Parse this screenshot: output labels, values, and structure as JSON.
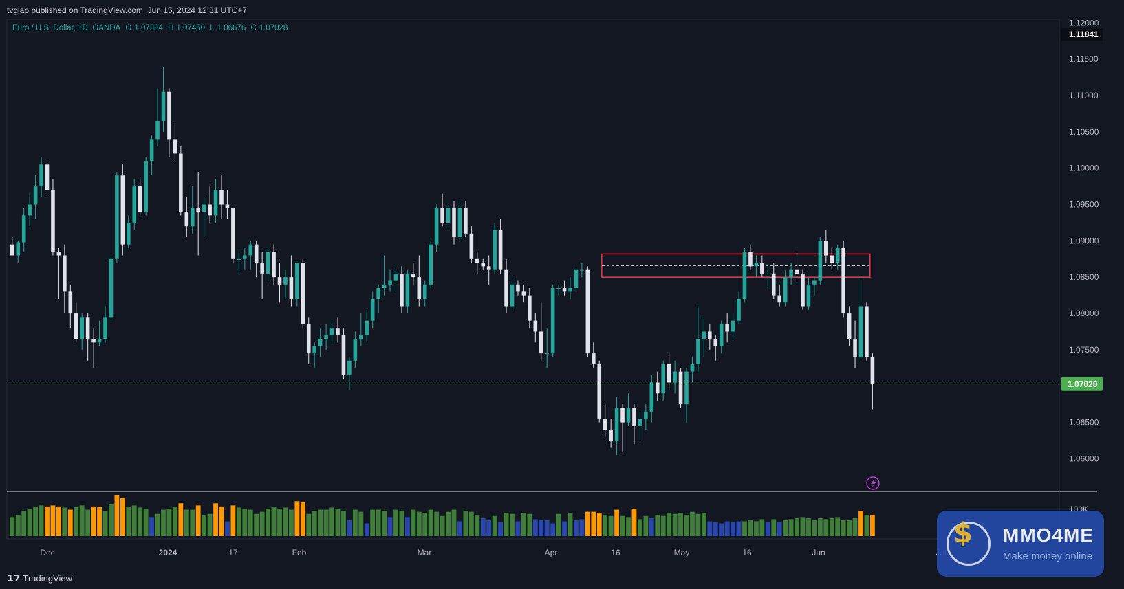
{
  "header": {
    "published": "tvgiap published on TradingView.com, Jun 15, 2024 12:31 UTC+7"
  },
  "legend": {
    "symbol": "Euro / U.S. Dollar, 1D, OANDA",
    "open_label": "O",
    "open": "1.07384",
    "high_label": "H",
    "high": "1.07450",
    "low_label": "L",
    "low": "1.06676",
    "close_label": "C",
    "close": "1.07028"
  },
  "price_axis": {
    "ticks": [
      "1.12000",
      "1.11500",
      "1.11000",
      "1.10500",
      "1.10000",
      "1.09500",
      "1.09000",
      "1.08500",
      "1.08000",
      "1.07500",
      "1.06500",
      "1.06000"
    ],
    "top_badge": "1.11841",
    "last_badge": "1.07028"
  },
  "volume_axis": {
    "label": "100K"
  },
  "time_axis": {
    "labels": [
      "Dec",
      "2024",
      "17",
      "Feb",
      "Mar",
      "Apr",
      "16",
      "May",
      "16",
      "Jun",
      "Jul"
    ]
  },
  "colors": {
    "up": "#26a69a",
    "down": "#e0e3eb",
    "bg": "#131722",
    "grid": "#2a2e39",
    "box": "#f23645",
    "vol_green": "#3f7f3a",
    "vol_orange": "#ff9800",
    "vol_blue": "#2848b0",
    "last_price": "#4caf50"
  },
  "icons": {
    "lightning": "lightning-icon"
  },
  "footer": {
    "logo_text": "TradingView"
  },
  "watermark": {
    "name": "MMO4ME",
    "tagline": "Make money online"
  },
  "chart_data": {
    "type": "candlestick",
    "symbol": "EURUSD",
    "timeframe": "1D",
    "ylim": [
      1.0555,
      1.1205
    ],
    "last_price": 1.07028,
    "candles": [
      {
        "o": 1.0895,
        "h": 1.0905,
        "l": 1.088,
        "c": 1.088
      },
      {
        "o": 1.088,
        "h": 1.09,
        "l": 1.087,
        "c": 1.0898
      },
      {
        "o": 1.0898,
        "h": 1.0945,
        "l": 1.0885,
        "c": 1.0935
      },
      {
        "o": 1.0935,
        "h": 1.0965,
        "l": 1.092,
        "c": 1.095
      },
      {
        "o": 1.095,
        "h": 1.099,
        "l": 1.093,
        "c": 1.0975
      },
      {
        "o": 1.0975,
        "h": 1.1015,
        "l": 1.096,
        "c": 1.1005
      },
      {
        "o": 1.1005,
        "h": 1.101,
        "l": 1.096,
        "c": 1.097
      },
      {
        "o": 1.097,
        "h": 1.0985,
        "l": 1.088,
        "c": 1.0885
      },
      {
        "o": 1.0885,
        "h": 1.089,
        "l": 1.082,
        "c": 1.088
      },
      {
        "o": 1.088,
        "h": 1.0895,
        "l": 1.08,
        "c": 1.083
      },
      {
        "o": 1.083,
        "h": 1.084,
        "l": 1.078,
        "c": 1.08
      },
      {
        "o": 1.08,
        "h": 1.0815,
        "l": 1.076,
        "c": 1.0765
      },
      {
        "o": 1.0765,
        "h": 1.08,
        "l": 1.075,
        "c": 1.0795
      },
      {
        "o": 1.0795,
        "h": 1.08,
        "l": 1.0735,
        "c": 1.0765
      },
      {
        "o": 1.0765,
        "h": 1.078,
        "l": 1.0725,
        "c": 1.076
      },
      {
        "o": 1.076,
        "h": 1.079,
        "l": 1.0755,
        "c": 1.0765
      },
      {
        "o": 1.0765,
        "h": 1.081,
        "l": 1.076,
        "c": 1.0795
      },
      {
        "o": 1.0795,
        "h": 1.088,
        "l": 1.079,
        "c": 1.0875
      },
      {
        "o": 1.0875,
        "h": 1.0995,
        "l": 1.087,
        "c": 1.099
      },
      {
        "o": 1.099,
        "h": 1.1005,
        "l": 1.088,
        "c": 1.0895
      },
      {
        "o": 1.0895,
        "h": 1.0935,
        "l": 1.089,
        "c": 1.0925
      },
      {
        "o": 1.0925,
        "h": 1.0985,
        "l": 1.0915,
        "c": 1.0975
      },
      {
        "o": 1.0975,
        "h": 1.0985,
        "l": 1.0935,
        "c": 1.094
      },
      {
        "o": 1.094,
        "h": 1.1015,
        "l": 1.0935,
        "c": 1.101
      },
      {
        "o": 1.101,
        "h": 1.1045,
        "l": 1.099,
        "c": 1.104
      },
      {
        "o": 1.104,
        "h": 1.111,
        "l": 1.103,
        "c": 1.1065
      },
      {
        "o": 1.1065,
        "h": 1.114,
        "l": 1.105,
        "c": 1.1105
      },
      {
        "o": 1.1105,
        "h": 1.111,
        "l": 1.1015,
        "c": 1.104
      },
      {
        "o": 1.104,
        "h": 1.106,
        "l": 1.101,
        "c": 1.102
      },
      {
        "o": 1.102,
        "h": 1.103,
        "l": 1.0935,
        "c": 1.094
      },
      {
        "o": 1.094,
        "h": 1.096,
        "l": 1.0905,
        "c": 1.092
      },
      {
        "o": 1.092,
        "h": 1.0975,
        "l": 1.091,
        "c": 1.0945
      },
      {
        "o": 1.0945,
        "h": 1.0995,
        "l": 1.088,
        "c": 1.094
      },
      {
        "o": 1.094,
        "h": 1.096,
        "l": 1.0905,
        "c": 1.095
      },
      {
        "o": 1.095,
        "h": 1.0975,
        "l": 1.0925,
        "c": 1.0935
      },
      {
        "o": 1.0935,
        "h": 1.0985,
        "l": 1.0925,
        "c": 1.097
      },
      {
        "o": 1.097,
        "h": 1.099,
        "l": 1.093,
        "c": 1.095
      },
      {
        "o": 1.095,
        "h": 1.097,
        "l": 1.093,
        "c": 1.0945
      },
      {
        "o": 1.0945,
        "h": 1.0945,
        "l": 1.087,
        "c": 1.0875
      },
      {
        "o": 1.0875,
        "h": 1.0885,
        "l": 1.0855,
        "c": 1.0875
      },
      {
        "o": 1.0875,
        "h": 1.089,
        "l": 1.086,
        "c": 1.088
      },
      {
        "o": 1.088,
        "h": 1.09,
        "l": 1.086,
        "c": 1.0895
      },
      {
        "o": 1.0895,
        "h": 1.09,
        "l": 1.085,
        "c": 1.087
      },
      {
        "o": 1.087,
        "h": 1.0885,
        "l": 1.082,
        "c": 1.0855
      },
      {
        "o": 1.0855,
        "h": 1.089,
        "l": 1.0845,
        "c": 1.0885
      },
      {
        "o": 1.0885,
        "h": 1.0895,
        "l": 1.084,
        "c": 1.085
      },
      {
        "o": 1.085,
        "h": 1.087,
        "l": 1.0815,
        "c": 1.084
      },
      {
        "o": 1.084,
        "h": 1.086,
        "l": 1.082,
        "c": 1.085
      },
      {
        "o": 1.085,
        "h": 1.088,
        "l": 1.081,
        "c": 1.082
      },
      {
        "o": 1.082,
        "h": 1.087,
        "l": 1.081,
        "c": 1.087
      },
      {
        "o": 1.087,
        "h": 1.0875,
        "l": 1.078,
        "c": 1.0785
      },
      {
        "o": 1.0785,
        "h": 1.0795,
        "l": 1.073,
        "c": 1.0745
      },
      {
        "o": 1.0745,
        "h": 1.076,
        "l": 1.0725,
        "c": 1.0755
      },
      {
        "o": 1.0755,
        "h": 1.078,
        "l": 1.074,
        "c": 1.0765
      },
      {
        "o": 1.0765,
        "h": 1.0785,
        "l": 1.075,
        "c": 1.077
      },
      {
        "o": 1.077,
        "h": 1.079,
        "l": 1.076,
        "c": 1.078
      },
      {
        "o": 1.078,
        "h": 1.0795,
        "l": 1.076,
        "c": 1.077
      },
      {
        "o": 1.077,
        "h": 1.078,
        "l": 1.071,
        "c": 1.0715
      },
      {
        "o": 1.0715,
        "h": 1.074,
        "l": 1.0695,
        "c": 1.0735
      },
      {
        "o": 1.0735,
        "h": 1.0775,
        "l": 1.0725,
        "c": 1.0765
      },
      {
        "o": 1.0765,
        "h": 1.08,
        "l": 1.0755,
        "c": 1.077
      },
      {
        "o": 1.077,
        "h": 1.0805,
        "l": 1.076,
        "c": 1.079
      },
      {
        "o": 1.079,
        "h": 1.083,
        "l": 1.078,
        "c": 1.082
      },
      {
        "o": 1.082,
        "h": 1.084,
        "l": 1.08,
        "c": 1.0835
      },
      {
        "o": 1.0835,
        "h": 1.088,
        "l": 1.0825,
        "c": 1.084
      },
      {
        "o": 1.084,
        "h": 1.086,
        "l": 1.083,
        "c": 1.0845
      },
      {
        "o": 1.0845,
        "h": 1.0865,
        "l": 1.083,
        "c": 1.0855
      },
      {
        "o": 1.0855,
        "h": 1.0865,
        "l": 1.08,
        "c": 1.081
      },
      {
        "o": 1.081,
        "h": 1.086,
        "l": 1.08,
        "c": 1.0855
      },
      {
        "o": 1.0855,
        "h": 1.087,
        "l": 1.084,
        "c": 1.085
      },
      {
        "o": 1.085,
        "h": 1.088,
        "l": 1.081,
        "c": 1.082
      },
      {
        "o": 1.082,
        "h": 1.0845,
        "l": 1.081,
        "c": 1.084
      },
      {
        "o": 1.084,
        "h": 1.09,
        "l": 1.0835,
        "c": 1.0895
      },
      {
        "o": 1.0895,
        "h": 1.095,
        "l": 1.0885,
        "c": 1.0945
      },
      {
        "o": 1.0945,
        "h": 1.0965,
        "l": 1.092,
        "c": 1.0925
      },
      {
        "o": 1.0925,
        "h": 1.095,
        "l": 1.0915,
        "c": 1.0945
      },
      {
        "o": 1.0945,
        "h": 1.0955,
        "l": 1.0895,
        "c": 1.0905
      },
      {
        "o": 1.0905,
        "h": 1.0955,
        "l": 1.09,
        "c": 1.0945
      },
      {
        "o": 1.0945,
        "h": 1.0955,
        "l": 1.0905,
        "c": 1.091
      },
      {
        "o": 1.091,
        "h": 1.092,
        "l": 1.087,
        "c": 1.0875
      },
      {
        "o": 1.0875,
        "h": 1.0885,
        "l": 1.0855,
        "c": 1.087
      },
      {
        "o": 1.087,
        "h": 1.0875,
        "l": 1.086,
        "c": 1.0865
      },
      {
        "o": 1.0865,
        "h": 1.088,
        "l": 1.084,
        "c": 1.086
      },
      {
        "o": 1.086,
        "h": 1.0925,
        "l": 1.0855,
        "c": 1.0915
      },
      {
        "o": 1.0915,
        "h": 1.093,
        "l": 1.0855,
        "c": 1.086
      },
      {
        "o": 1.086,
        "h": 1.0875,
        "l": 1.08,
        "c": 1.081
      },
      {
        "o": 1.081,
        "h": 1.085,
        "l": 1.0805,
        "c": 1.084
      },
      {
        "o": 1.084,
        "h": 1.0845,
        "l": 1.0825,
        "c": 1.083
      },
      {
        "o": 1.083,
        "h": 1.084,
        "l": 1.0815,
        "c": 1.0825
      },
      {
        "o": 1.0825,
        "h": 1.0835,
        "l": 1.078,
        "c": 1.079
      },
      {
        "o": 1.079,
        "h": 1.08,
        "l": 1.076,
        "c": 1.0775
      },
      {
        "o": 1.0775,
        "h": 1.0815,
        "l": 1.0735,
        "c": 1.0745
      },
      {
        "o": 1.0745,
        "h": 1.078,
        "l": 1.0725,
        "c": 1.0745
      },
      {
        "o": 1.0745,
        "h": 1.084,
        "l": 1.074,
        "c": 1.0835
      },
      {
        "o": 1.0835,
        "h": 1.084,
        "l": 1.0825,
        "c": 1.0835
      },
      {
        "o": 1.0835,
        "h": 1.0845,
        "l": 1.0825,
        "c": 1.083
      },
      {
        "o": 1.083,
        "h": 1.085,
        "l": 1.082,
        "c": 1.0835
      },
      {
        "o": 1.0835,
        "h": 1.0865,
        "l": 1.083,
        "c": 1.086
      },
      {
        "o": 1.086,
        "h": 1.087,
        "l": 1.085,
        "c": 1.086
      },
      {
        "o": 1.086,
        "h": 1.0865,
        "l": 1.074,
        "c": 1.0745
      },
      {
        "o": 1.0745,
        "h": 1.076,
        "l": 1.0725,
        "c": 1.073
      },
      {
        "o": 1.073,
        "h": 1.0735,
        "l": 1.065,
        "c": 1.0655
      },
      {
        "o": 1.0655,
        "h": 1.0675,
        "l": 1.063,
        "c": 1.064
      },
      {
        "o": 1.064,
        "h": 1.0655,
        "l": 1.0615,
        "c": 1.0625
      },
      {
        "o": 1.0625,
        "h": 1.0685,
        "l": 1.0605,
        "c": 1.067
      },
      {
        "o": 1.067,
        "h": 1.0675,
        "l": 1.061,
        "c": 1.065
      },
      {
        "o": 1.065,
        "h": 1.069,
        "l": 1.0645,
        "c": 1.067
      },
      {
        "o": 1.067,
        "h": 1.0675,
        "l": 1.062,
        "c": 1.0645
      },
      {
        "o": 1.0645,
        "h": 1.0665,
        "l": 1.0625,
        "c": 1.0655
      },
      {
        "o": 1.0655,
        "h": 1.0675,
        "l": 1.064,
        "c": 1.0665
      },
      {
        "o": 1.0665,
        "h": 1.0715,
        "l": 1.065,
        "c": 1.0705
      },
      {
        "o": 1.0705,
        "h": 1.072,
        "l": 1.068,
        "c": 1.069
      },
      {
        "o": 1.069,
        "h": 1.0735,
        "l": 1.068,
        "c": 1.073
      },
      {
        "o": 1.073,
        "h": 1.0745,
        "l": 1.0695,
        "c": 1.0705
      },
      {
        "o": 1.0705,
        "h": 1.0735,
        "l": 1.069,
        "c": 1.072
      },
      {
        "o": 1.072,
        "h": 1.0725,
        "l": 1.067,
        "c": 1.0675
      },
      {
        "o": 1.0675,
        "h": 1.0725,
        "l": 1.065,
        "c": 1.072
      },
      {
        "o": 1.072,
        "h": 1.074,
        "l": 1.0705,
        "c": 1.073
      },
      {
        "o": 1.073,
        "h": 1.081,
        "l": 1.072,
        "c": 1.0765
      },
      {
        "o": 1.0765,
        "h": 1.0795,
        "l": 1.074,
        "c": 1.0775
      },
      {
        "o": 1.0775,
        "h": 1.0785,
        "l": 1.075,
        "c": 1.0765
      },
      {
        "o": 1.0765,
        "h": 1.077,
        "l": 1.0735,
        "c": 1.0755
      },
      {
        "o": 1.0755,
        "h": 1.079,
        "l": 1.0745,
        "c": 1.0785
      },
      {
        "o": 1.0785,
        "h": 1.08,
        "l": 1.076,
        "c": 1.0775
      },
      {
        "o": 1.0775,
        "h": 1.08,
        "l": 1.0765,
        "c": 1.079
      },
      {
        "o": 1.079,
        "h": 1.083,
        "l": 1.0785,
        "c": 1.082
      },
      {
        "o": 1.082,
        "h": 1.089,
        "l": 1.0815,
        "c": 1.0885
      },
      {
        "o": 1.0885,
        "h": 1.0895,
        "l": 1.086,
        "c": 1.0865
      },
      {
        "o": 1.0865,
        "h": 1.088,
        "l": 1.085,
        "c": 1.087
      },
      {
        "o": 1.087,
        "h": 1.088,
        "l": 1.085,
        "c": 1.0855
      },
      {
        "o": 1.0855,
        "h": 1.0865,
        "l": 1.0835,
        "c": 1.0855
      },
      {
        "o": 1.0855,
        "h": 1.087,
        "l": 1.082,
        "c": 1.0825
      },
      {
        "o": 1.0825,
        "h": 1.084,
        "l": 1.081,
        "c": 1.0815
      },
      {
        "o": 1.0815,
        "h": 1.086,
        "l": 1.081,
        "c": 1.085
      },
      {
        "o": 1.085,
        "h": 1.087,
        "l": 1.084,
        "c": 1.086
      },
      {
        "o": 1.086,
        "h": 1.0885,
        "l": 1.0845,
        "c": 1.0855
      },
      {
        "o": 1.0855,
        "h": 1.086,
        "l": 1.0805,
        "c": 1.081
      },
      {
        "o": 1.081,
        "h": 1.085,
        "l": 1.0805,
        "c": 1.084
      },
      {
        "o": 1.084,
        "h": 1.085,
        "l": 1.0825,
        "c": 1.0845
      },
      {
        "o": 1.0845,
        "h": 1.0905,
        "l": 1.084,
        "c": 1.09
      },
      {
        "o": 1.09,
        "h": 1.0915,
        "l": 1.087,
        "c": 1.088
      },
      {
        "o": 1.088,
        "h": 1.089,
        "l": 1.086,
        "c": 1.087
      },
      {
        "o": 1.087,
        "h": 1.0895,
        "l": 1.086,
        "c": 1.089
      },
      {
        "o": 1.089,
        "h": 1.09,
        "l": 1.0795,
        "c": 1.08
      },
      {
        "o": 1.08,
        "h": 1.081,
        "l": 1.0755,
        "c": 1.0765
      },
      {
        "o": 1.0765,
        "h": 1.079,
        "l": 1.0725,
        "c": 1.074
      },
      {
        "o": 1.074,
        "h": 1.085,
        "l": 1.0735,
        "c": 1.081
      },
      {
        "o": 1.081,
        "h": 1.0815,
        "l": 1.0735,
        "c": 1.074
      },
      {
        "o": 1.074,
        "h": 1.0745,
        "l": 1.0668,
        "c": 1.07028
      }
    ],
    "volume_colors": [
      "g",
      "g",
      "g",
      "g",
      "g",
      "g",
      "o",
      "o",
      "o",
      "g",
      "o",
      "g",
      "g",
      "g",
      "o",
      "o",
      "g",
      "g",
      "o",
      "o",
      "g",
      "g",
      "g",
      "g",
      "b",
      "g",
      "g",
      "g",
      "g",
      "o",
      "g",
      "g",
      "o",
      "g",
      "g",
      "o",
      "o",
      "b",
      "o",
      "g",
      "g",
      "g",
      "g",
      "g",
      "g",
      "g",
      "g",
      "g",
      "g",
      "o",
      "o",
      "g",
      "g",
      "g",
      "g",
      "g",
      "g",
      "g",
      "b",
      "g",
      "g",
      "b",
      "g",
      "g",
      "g",
      "b",
      "g",
      "g",
      "b",
      "g",
      "g",
      "g",
      "g",
      "g",
      "g",
      "g",
      "g",
      "b",
      "g",
      "g",
      "g",
      "b",
      "b",
      "g",
      "b",
      "g",
      "g",
      "b",
      "g",
      "g",
      "b",
      "b",
      "b",
      "b",
      "g",
      "b",
      "g",
      "b",
      "b",
      "o",
      "o",
      "o",
      "g",
      "g",
      "o",
      "g",
      "g",
      "o",
      "g",
      "g",
      "b",
      "g",
      "g",
      "g",
      "g",
      "g",
      "g",
      "g",
      "g",
      "g",
      "b",
      "b",
      "b",
      "b",
      "b",
      "b",
      "g",
      "g",
      "g",
      "g",
      "b",
      "g",
      "b",
      "g",
      "g",
      "g",
      "g",
      "g",
      "g",
      "g",
      "g",
      "g",
      "g",
      "g",
      "g",
      "g",
      "o",
      "g",
      "o"
    ],
    "volume": [
      36,
      40,
      48,
      52,
      56,
      58,
      56,
      58,
      56,
      54,
      50,
      55,
      58,
      50,
      56,
      55,
      48,
      60,
      78,
      72,
      56,
      58,
      54,
      52,
      36,
      42,
      50,
      52,
      56,
      62,
      50,
      50,
      58,
      40,
      42,
      62,
      56,
      28,
      58,
      54,
      52,
      50,
      42,
      46,
      52,
      56,
      52,
      54,
      50,
      66,
      64,
      42,
      48,
      50,
      50,
      54,
      52,
      48,
      30,
      50,
      46,
      24,
      50,
      50,
      48,
      36,
      50,
      48,
      36,
      50,
      46,
      44,
      50,
      46,
      38,
      46,
      50,
      28,
      48,
      46,
      40,
      34,
      30,
      38,
      26,
      44,
      42,
      28,
      44,
      42,
      32,
      30,
      30,
      24,
      42,
      28,
      44,
      30,
      32,
      46,
      46,
      44,
      40,
      38,
      50,
      38,
      36,
      52,
      32,
      38,
      34,
      40,
      38,
      44,
      42,
      44,
      40,
      46,
      42,
      44,
      28,
      26,
      24,
      28,
      26,
      28,
      28,
      30,
      28,
      32,
      26,
      32,
      26,
      30,
      32,
      34,
      36,
      34,
      30,
      34,
      32,
      34,
      36,
      30,
      30,
      34,
      48,
      40,
      40
    ],
    "box": {
      "start_index": 102,
      "end_index": 147,
      "top": 1.0882,
      "bottom": 1.085,
      "mid": 1.0866
    }
  }
}
